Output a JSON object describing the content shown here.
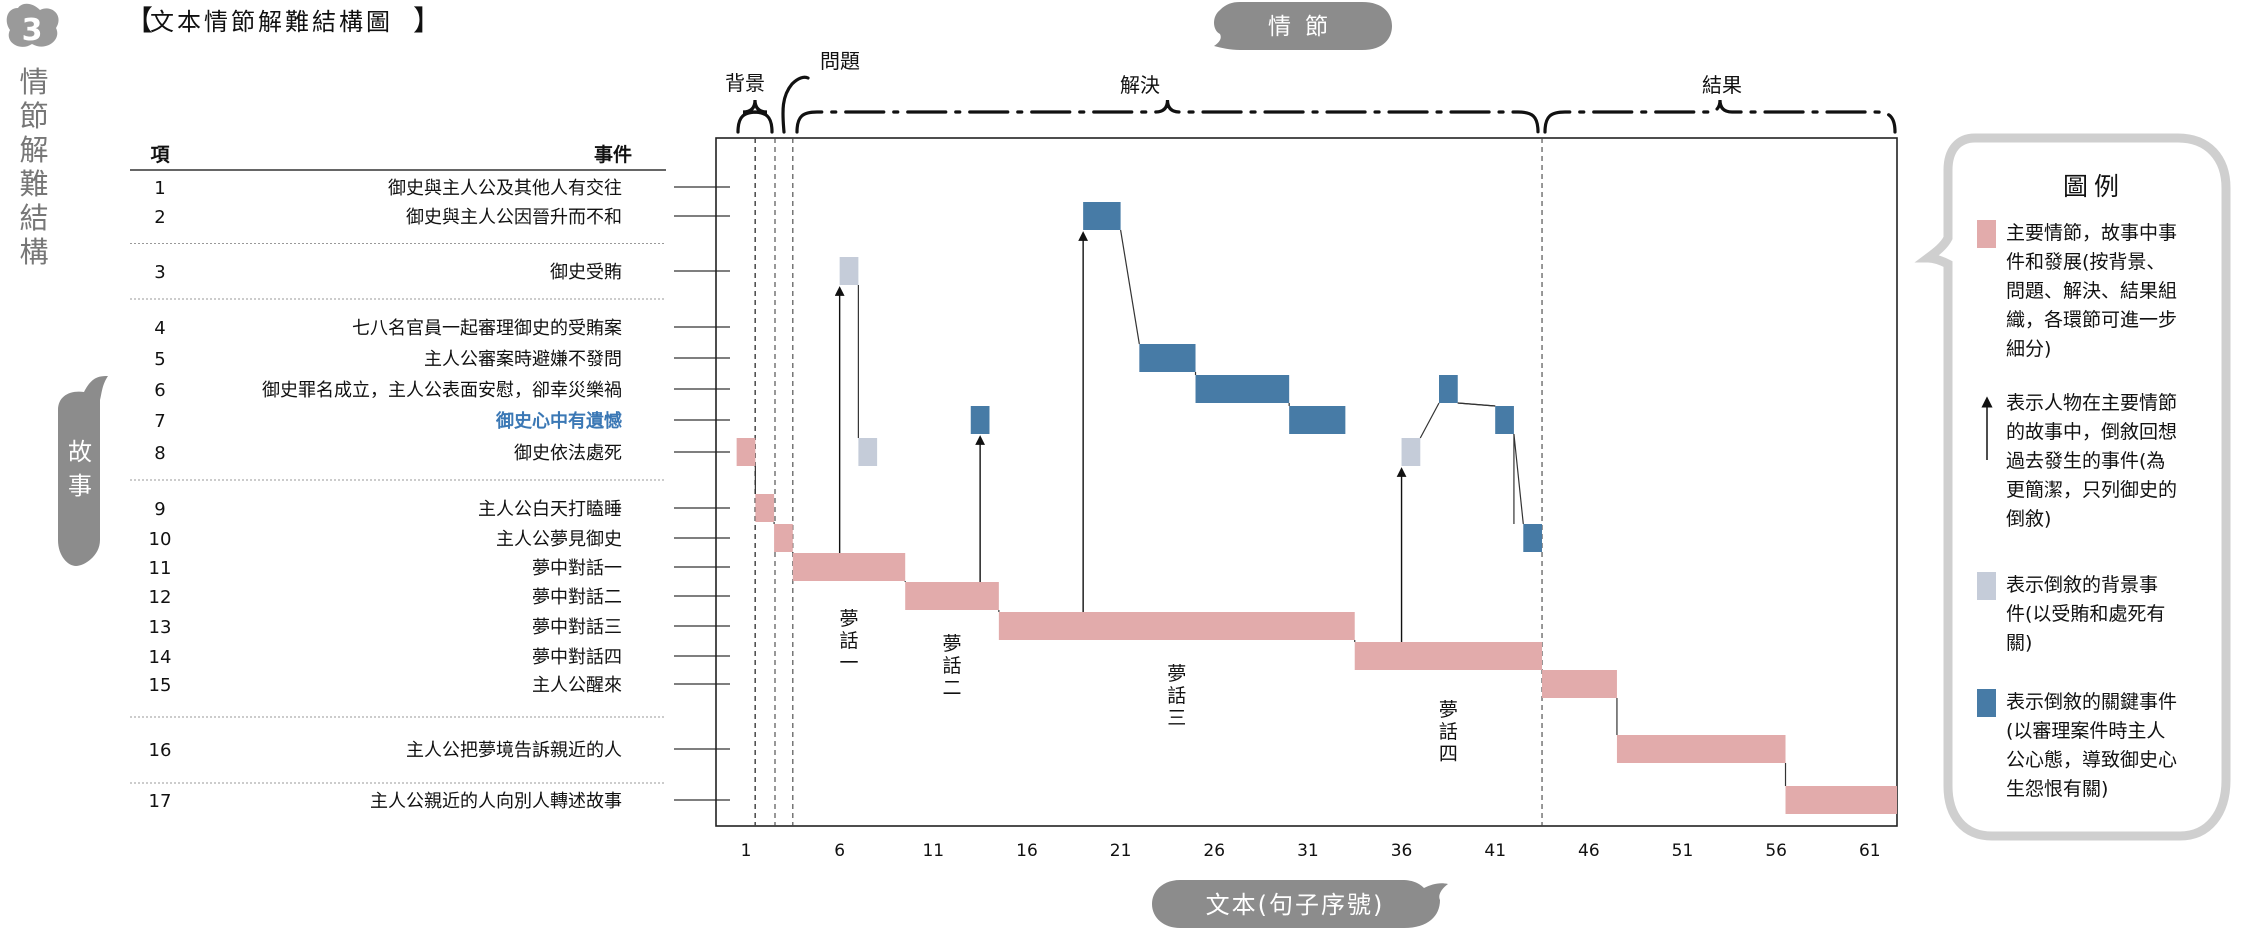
{
  "header": {
    "number": "3",
    "title": "文本情節解難結構圖",
    "side_title": "情節解難結構",
    "story_bubble": "故事",
    "plot_bubble": "情節",
    "text_bubble": "文本(句子序號)"
  },
  "table": {
    "col_index": "項",
    "col_event": "事件",
    "rows": [
      {
        "n": "1",
        "text": "御史與主人公及其他人有交往",
        "highlight": false
      },
      {
        "n": "2",
        "text": "御史與主人公因晉升而不和",
        "highlight": false
      },
      {
        "n": "3",
        "text": "御史受賄",
        "highlight": false
      },
      {
        "n": "4",
        "text": "七八名官員一起審理御史的受賄案",
        "highlight": false
      },
      {
        "n": "5",
        "text": "主人公審案時避嫌不發問",
        "highlight": false
      },
      {
        "n": "6",
        "text": "御史罪名成立，主人公表面安慰，卻幸災樂禍",
        "highlight": false
      },
      {
        "n": "7",
        "text": "御史心中有遺憾",
        "highlight": true
      },
      {
        "n": "8",
        "text": "御史依法處死",
        "highlight": false
      },
      {
        "n": "9",
        "text": "主人公白天打瞌睡",
        "highlight": false
      },
      {
        "n": "10",
        "text": "主人公夢見御史",
        "highlight": false
      },
      {
        "n": "11",
        "text": "夢中對話一",
        "highlight": false
      },
      {
        "n": "12",
        "text": "夢中對話二",
        "highlight": false
      },
      {
        "n": "13",
        "text": "夢中對話三",
        "highlight": false
      },
      {
        "n": "14",
        "text": "夢中對話四",
        "highlight": false
      },
      {
        "n": "15",
        "text": "主人公醒來",
        "highlight": false
      },
      {
        "n": "16",
        "text": "主人公把夢境告訴親近的人",
        "highlight": false
      },
      {
        "n": "17",
        "text": "主人公親近的人向別人轉述故事",
        "highlight": false
      }
    ]
  },
  "chart_data": {
    "type": "timeline",
    "x_ticks": [
      1,
      6,
      11,
      16,
      21,
      26,
      31,
      36,
      41,
      46,
      51,
      56,
      61
    ],
    "sections": [
      {
        "label": "背景",
        "start": 0.5,
        "end": 2.5
      },
      {
        "label": "問題",
        "start": 2.5,
        "end": 3.5
      },
      {
        "label": "解決",
        "start": 3.5,
        "end": 43.5
      },
      {
        "label": "結果",
        "start": 43.5,
        "end": 63
      }
    ],
    "section_dividers": [
      1.5,
      3.5,
      43.5
    ],
    "main_bars": [
      {
        "event": 8,
        "start": 0.5,
        "end": 1.5
      },
      {
        "event": 9,
        "start": 1.5,
        "end": 2.5
      },
      {
        "event": 10,
        "start": 2.5,
        "end": 3.5
      },
      {
        "event": 11,
        "start": 3.5,
        "end": 9.5
      },
      {
        "event": 12,
        "start": 9.5,
        "end": 14.5
      },
      {
        "event": 13,
        "start": 14.5,
        "end": 33.5
      },
      {
        "event": 14,
        "start": 33.5,
        "end": 43.5
      },
      {
        "event": 15,
        "start": 43.5,
        "end": 47.5
      },
      {
        "event": 16,
        "start": 47.5,
        "end": 56.5
      },
      {
        "event": 17,
        "start": 56.5,
        "end": 63
      }
    ],
    "background_bars": [
      {
        "event": 3,
        "start": 6,
        "end": 7
      },
      {
        "event": 8,
        "start": 7,
        "end": 8
      },
      {
        "event": 8,
        "start": 36,
        "end": 37
      }
    ],
    "key_bars": [
      {
        "event": 7,
        "start": 13,
        "end": 14
      },
      {
        "event": 2,
        "start": 19,
        "end": 21
      },
      {
        "event": 5,
        "start": 22,
        "end": 25
      },
      {
        "event": 6,
        "start": 25,
        "end": 30
      },
      {
        "event": 7,
        "start": 30,
        "end": 33
      },
      {
        "event": 6,
        "start": 38,
        "end": 39
      },
      {
        "event": 7,
        "start": 41,
        "end": 42
      },
      {
        "event": 10,
        "start": 42.5,
        "end": 43.5
      }
    ],
    "arrows": [
      {
        "x": 6,
        "from_event": 11,
        "to_event": 3
      },
      {
        "x": 13.5,
        "from_event": 12,
        "to_event": 7
      },
      {
        "x": 19,
        "from_event": 13,
        "to_event": 2
      },
      {
        "x": 36,
        "from_event": 14,
        "to_event": 8
      }
    ],
    "dream_labels": [
      {
        "text": "夢話一",
        "x": 6.5
      },
      {
        "text": "夢話二",
        "x": 12
      },
      {
        "text": "夢話三",
        "x": 24
      },
      {
        "text": "夢話四",
        "x": 38.5
      }
    ]
  },
  "legend": {
    "title": "圖例",
    "items": [
      {
        "type": "main",
        "color": "#e2abab",
        "lines": [
          "主要情節，故事中事",
          "件和發展(按背景、",
          "問題、解決、結果組",
          "織，各環節可進一步",
          "細分)"
        ]
      },
      {
        "type": "arrow",
        "color": "#222222",
        "lines": [
          "表示人物在主要情節",
          "的故事中，倒敘回想",
          "過去發生的事件(為",
          "更簡潔，只列御史的",
          "倒敘)"
        ]
      },
      {
        "type": "background",
        "color": "#c5ccd9",
        "lines": [
          "表示倒敘的背景事",
          "件(以受賄和處死有",
          "關)"
        ]
      },
      {
        "type": "key",
        "color": "#477ba6",
        "lines": [
          "表示倒敘的關鍵事件",
          "(以審理案件時主人",
          "公心態，導致御史心",
          "生怨恨有關)"
        ]
      }
    ]
  },
  "colors": {
    "main": "#e2abab",
    "background": "#c5ccd9",
    "key": "#477ba6",
    "highlight_text": "#3b78b5",
    "bubble": "#8c8c8c"
  }
}
